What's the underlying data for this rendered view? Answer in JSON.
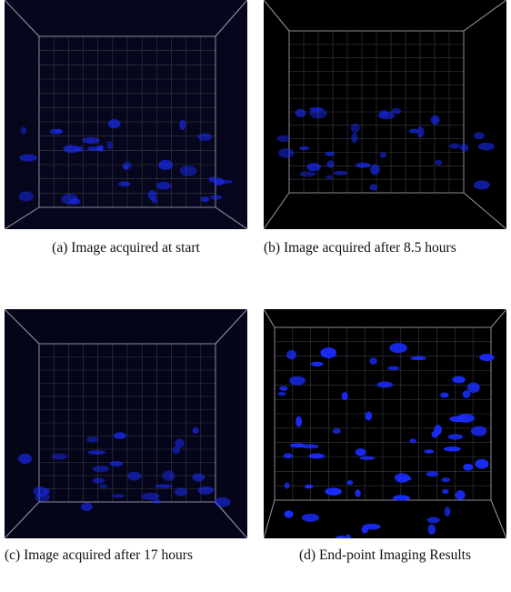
{
  "panels": [
    {
      "label": "(a)",
      "caption": "Image acquired at start"
    },
    {
      "label": "(b)",
      "caption": "Image acquired after 8.5 hours"
    },
    {
      "label": "(c)",
      "caption": "Image acquired after 17 hours"
    },
    {
      "label": "(d)",
      "caption": "End-point Imaging Results"
    }
  ]
}
